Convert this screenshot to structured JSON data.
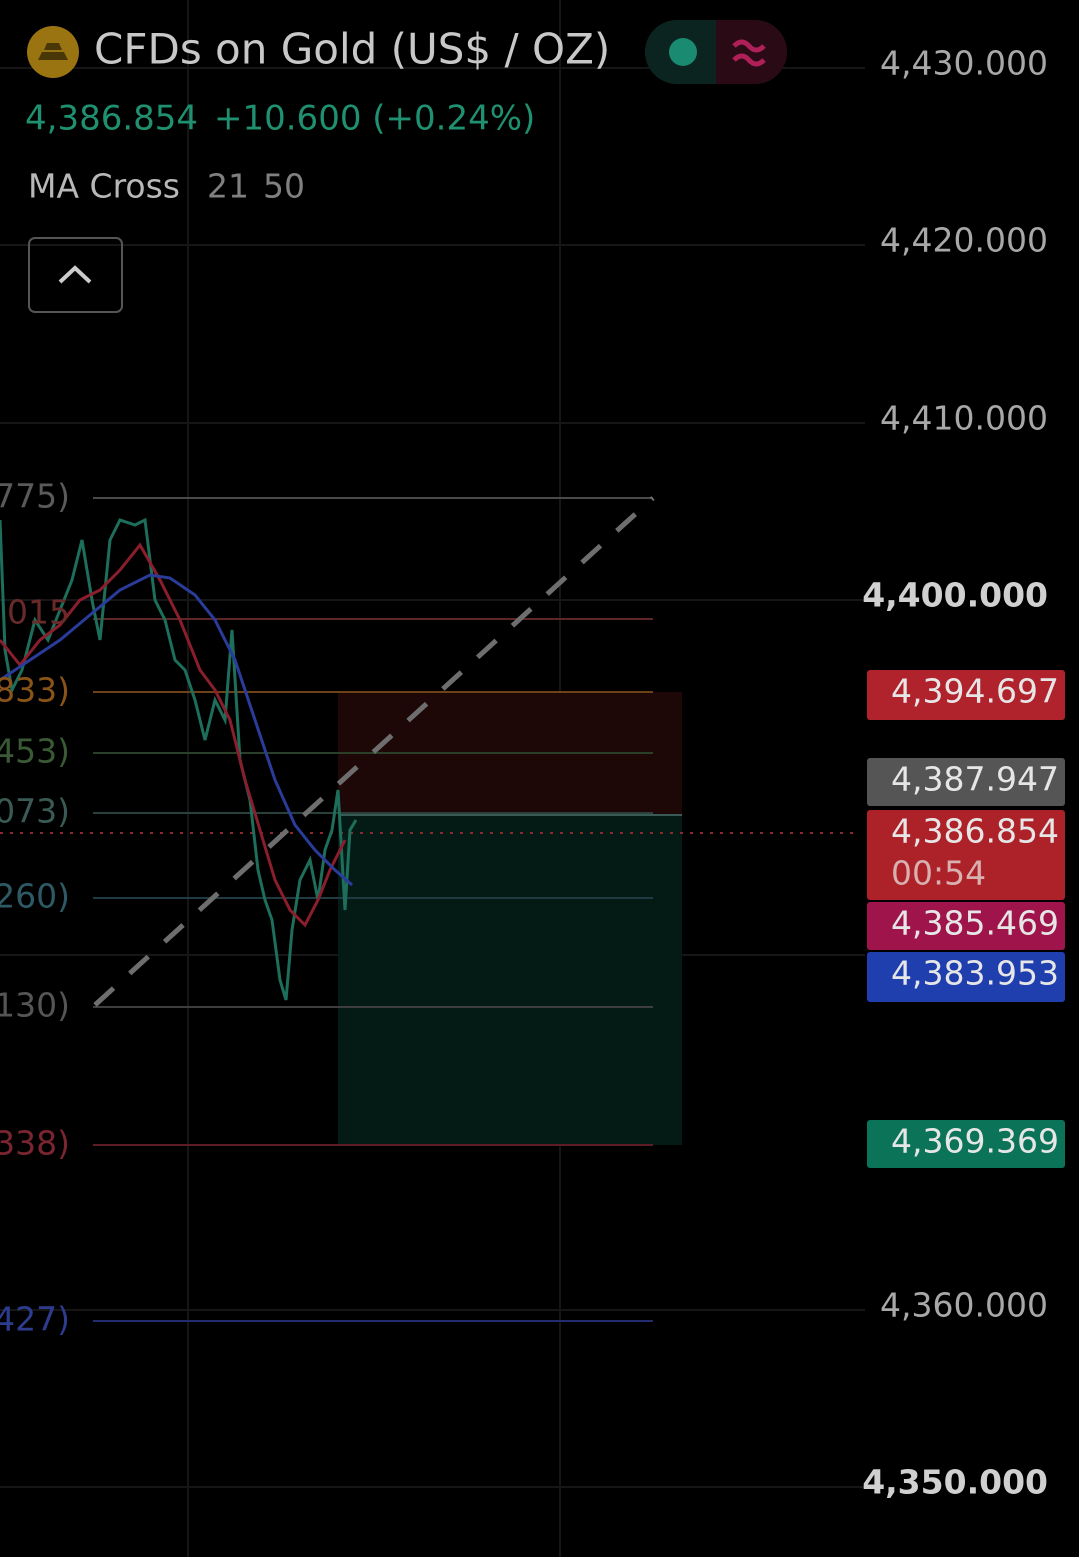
{
  "header": {
    "title": "CFDs on Gold (US$ / OZ)",
    "price": "4,386.854",
    "change": "+10.600 (+0.24%)"
  },
  "indicator": {
    "name": "MA Cross",
    "params": [
      "21",
      "50"
    ]
  },
  "price_axis": [
    "4,430.000",
    "4,420.000",
    "4,410.000",
    "4,400.000",
    "4,360.000",
    "4,350.000"
  ],
  "price_tags": [
    {
      "label": "4,394.697"
    },
    {
      "label": "4,387.947"
    },
    {
      "label": "4,386.854",
      "countdown": "00:54"
    },
    {
      "label": "4,385.469"
    },
    {
      "label": "4,383.953"
    },
    {
      "label": "4,369.369"
    }
  ],
  "fib_labels": [
    "775)",
    "015",
    "833)",
    "453)",
    "073)",
    "260)",
    "130)",
    "338)",
    "427)"
  ]
}
